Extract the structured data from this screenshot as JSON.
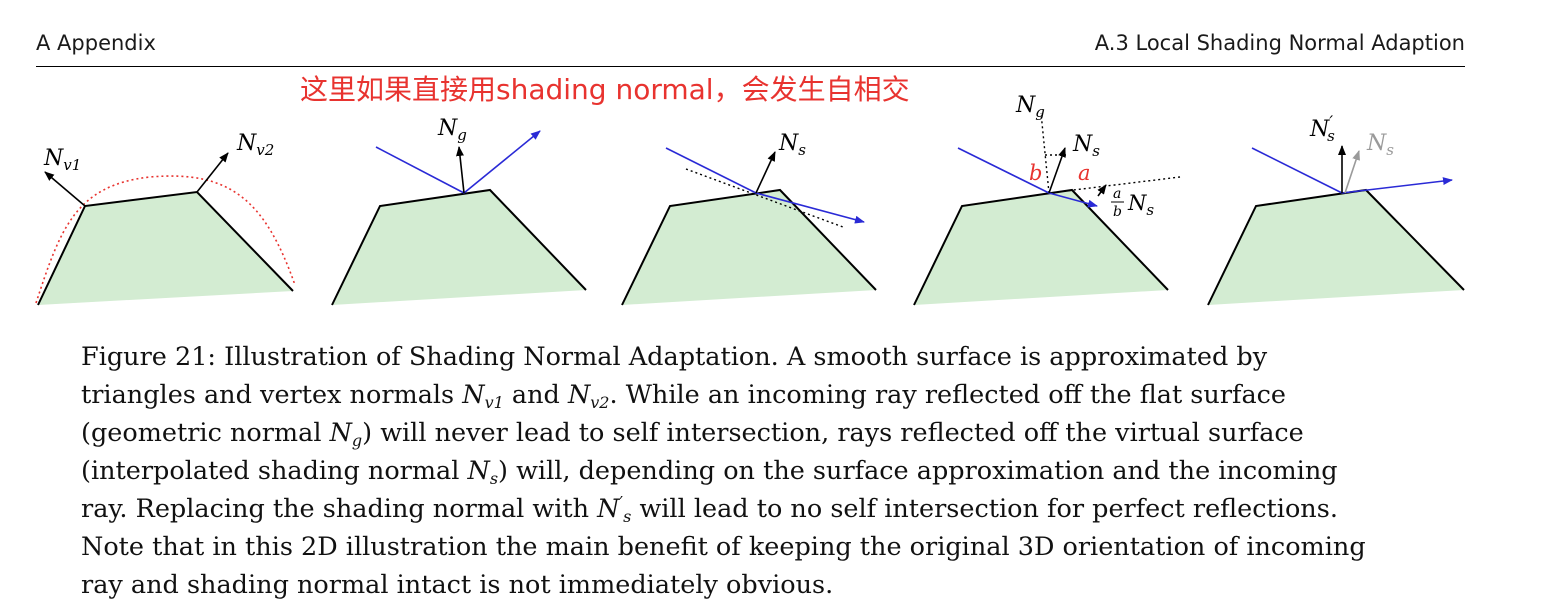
{
  "header": {
    "left": "A Appendix",
    "right": "A.3 Local Shading Normal Adaption"
  },
  "annotation": "这里如果直接用shading normal，会发生自相交",
  "figure": {
    "panels": [
      {
        "labels": {
          "n1_main": "N",
          "n1_sub": "v1",
          "n2_main": "N",
          "n2_sub": "v2"
        }
      },
      {
        "labels": {
          "ng_main": "N",
          "ng_sub": "g"
        }
      },
      {
        "labels": {
          "ns_main": "N",
          "ns_sub": "s"
        }
      },
      {
        "labels": {
          "ng_main": "N",
          "ng_sub": "g",
          "ns_main": "N",
          "ns_sub": "s",
          "b": "b",
          "a": "a",
          "frac_num": "a",
          "frac_den": "b",
          "ans_main": "N",
          "ans_sub": "s"
        }
      },
      {
        "labels": {
          "nsp_main": "N",
          "nsp_prime": "′",
          "nsp_sub": "s",
          "ns_main": "N",
          "ns_sub": "s"
        }
      }
    ],
    "colors": {
      "fill": "#d3ecd2",
      "ray": "#2a2ad6",
      "red": "#e8332f",
      "gray": "#9a9a9a"
    }
  },
  "caption": {
    "l1": "Figure 21: Illustration of Shading Normal Adaptation. A smooth surface is approximated by",
    "l2a": "triangles and vertex normals ",
    "l2_n1": "N",
    "l2_n1sub": "v1",
    "l2b": " and ",
    "l2_n2": "N",
    "l2_n2sub": "v2",
    "l2c": ". While an incoming ray reflected off the flat surface",
    "l3a": "(geometric normal ",
    "l3_ng": "N",
    "l3_ngsub": "g",
    "l3b": ") will never lead to self intersection, rays reflected off the virtual surface",
    "l4a": "(interpolated shading normal ",
    "l4_ns": "N",
    "l4_nssub": "s",
    "l4b": ") will, depending on the surface approximation and the incoming",
    "l5a": "ray. Replacing the shading normal with ",
    "l5_n": "N",
    "l5_prime": "′",
    "l5_sub": "s",
    "l5b": " will lead to no self intersection for perfect reflections.",
    "l6": "Note that in this 2D illustration the main benefit of keeping the original 3D orientation of incoming",
    "l7": "ray and shading normal intact is not immediately obvious."
  }
}
